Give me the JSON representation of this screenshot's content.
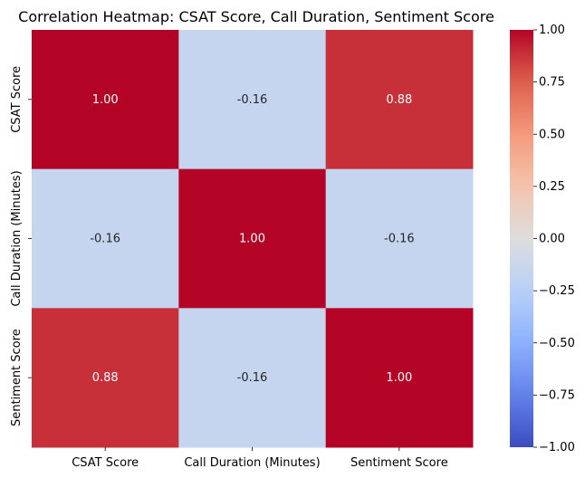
{
  "chart_data": {
    "type": "heatmap",
    "title": "Correlation Heatmap: CSAT Score, Call Duration, Sentiment Score",
    "x_labels": [
      "CSAT Score",
      "Call Duration (Minutes)",
      "Sentiment Score"
    ],
    "y_labels": [
      "CSAT Score",
      "Call Duration (Minutes)",
      "Sentiment Score"
    ],
    "values": [
      [
        1.0,
        -0.16,
        0.88
      ],
      [
        -0.16,
        1.0,
        -0.16
      ],
      [
        0.88,
        -0.16,
        1.0
      ]
    ],
    "cell_labels": [
      [
        "1.00",
        "-0.16",
        "0.88"
      ],
      [
        "-0.16",
        "1.00",
        "-0.16"
      ],
      [
        "0.88",
        "-0.16",
        "1.00"
      ]
    ],
    "colormap": "coolwarm",
    "vmin": -1.0,
    "vmax": 1.0,
    "colorbar_ticks": [
      1.0,
      0.75,
      0.5,
      0.25,
      0.0,
      -0.25,
      -0.5,
      -0.75,
      -1.0
    ],
    "colorbar_tick_labels": [
      "1.00",
      "0.75",
      "0.50",
      "0.25",
      "0.00",
      "−0.25",
      "−0.50",
      "−0.75",
      "−1.00"
    ],
    "colorbar_position": "right",
    "grid": false
  }
}
